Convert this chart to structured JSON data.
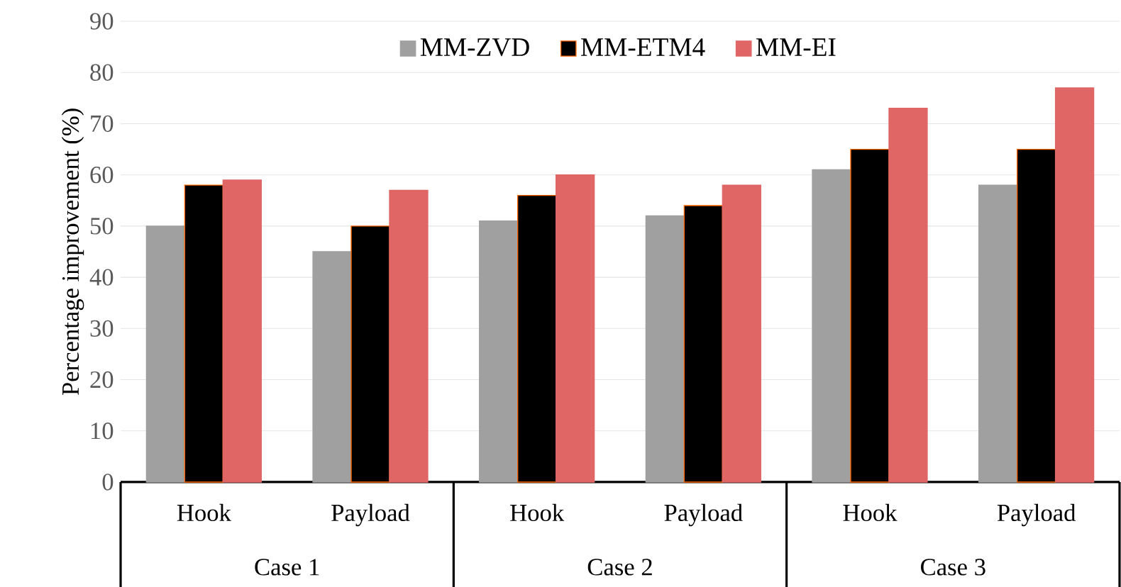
{
  "chart_data": {
    "type": "bar",
    "ylabel": "Percentage improvement (%)",
    "categories": [
      "Hook",
      "Payload",
      "Hook",
      "Payload",
      "Hook",
      "Payload"
    ],
    "series": [
      {
        "name": "MM-ZVD",
        "color": "#a0a0a0",
        "values": [
          50,
          45,
          51,
          52,
          61,
          58
        ]
      },
      {
        "name": "MM-ETM4",
        "color": "#000000",
        "values": [
          58,
          50,
          56,
          54,
          65,
          65
        ]
      },
      {
        "name": "MM-EI",
        "color": "#e06666",
        "values": [
          59,
          57,
          60,
          58,
          73,
          77
        ]
      }
    ],
    "annotations": [
      "Case 1",
      "Case 2",
      "Case 3"
    ],
    "ylim": [
      0,
      90
    ],
    "yticks": [
      0,
      10,
      20,
      30,
      40,
      50,
      60,
      70,
      80,
      90
    ],
    "grid": "y",
    "legend": "top"
  }
}
